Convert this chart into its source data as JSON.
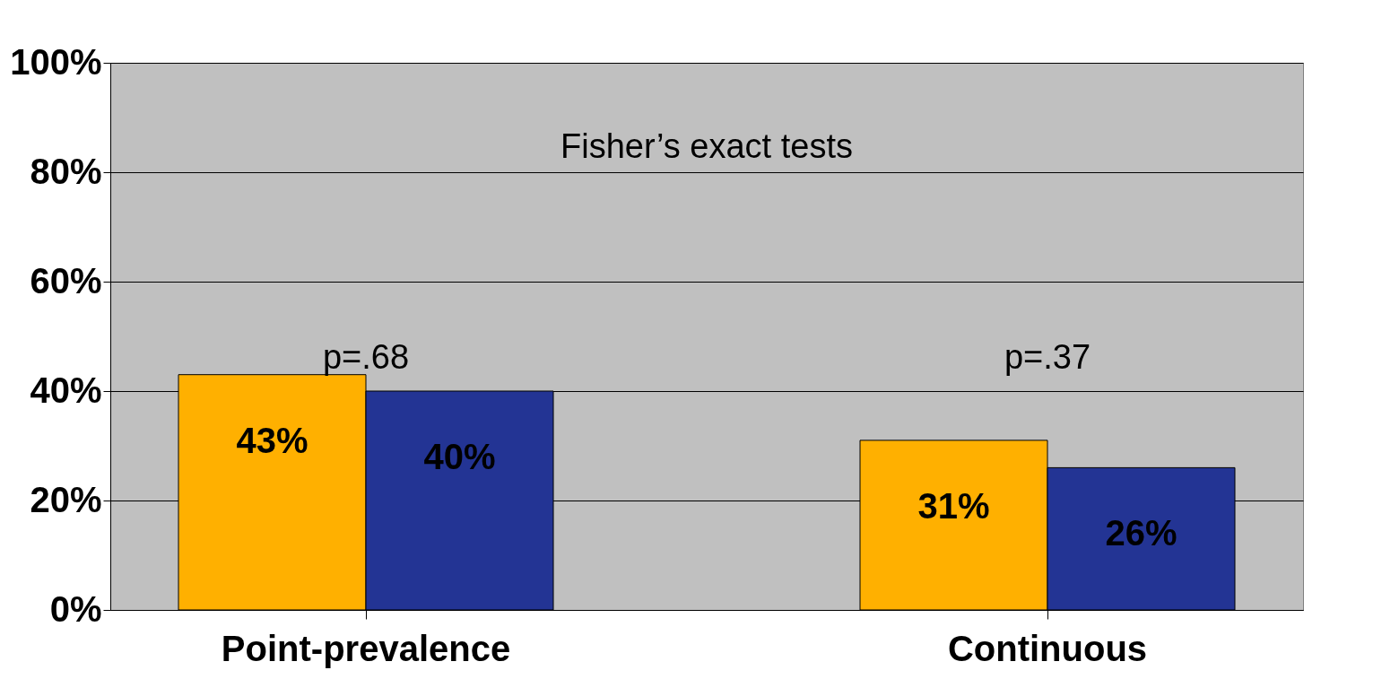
{
  "chart_data": {
    "type": "bar",
    "categories": [
      "Point-prevalence",
      "Continuous"
    ],
    "series": [
      {
        "color": "#ffb000",
        "values": [
          43,
          31
        ],
        "value_labels": [
          "43%",
          "31%"
        ]
      },
      {
        "color": "#233494",
        "values": [
          40,
          26
        ],
        "value_labels": [
          "40%",
          "26%"
        ]
      }
    ],
    "ylim": [
      0,
      100
    ],
    "yticks": [
      {
        "value": 0,
        "label": "0%"
      },
      {
        "value": 20,
        "label": "20%"
      },
      {
        "value": 40,
        "label": "40%"
      },
      {
        "value": 60,
        "label": "60%"
      },
      {
        "value": 80,
        "label": "80%"
      },
      {
        "value": 100,
        "label": "100%"
      }
    ],
    "grid": "y",
    "annotations": [
      "Fisher’s exact tests",
      "p=.68",
      "p=.37"
    ]
  }
}
